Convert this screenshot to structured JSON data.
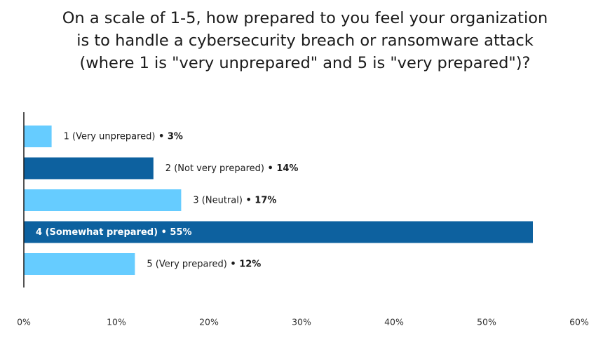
{
  "title_lines": [
    "On a scale of 1-5, how prepared to you feel your organization",
    "is to handle a cybersecurity breach or ransomware attack",
    "(where 1 is \"very unprepared\" and 5 is \"very prepared\")?"
  ],
  "colors": {
    "light_bar": "#66ccff",
    "dark_bar": "#0d619f",
    "axis": "#1a1a1a",
    "label_dark": "#1a1a1a",
    "label_on_bar": "#ffffff"
  },
  "chart_data": {
    "type": "bar",
    "orientation": "horizontal",
    "title": "On a scale of 1-5, how prepared to you feel your organization is to handle a cybersecurity breach or ransomware attack (where 1 is \"very unprepared\" and 5 is \"very prepared\")?",
    "categories": [
      "1 (Very unprepared)",
      "2 (Not very prepared)",
      "3 (Neutral)",
      "4 (Somewhat prepared)",
      "5 (Very prepared)"
    ],
    "values": [
      3,
      14,
      17,
      55,
      12
    ],
    "value_labels": [
      "3%",
      "14%",
      "17%",
      "55%",
      "12%"
    ],
    "bar_colors": [
      "light",
      "dark",
      "light",
      "dark",
      "light"
    ],
    "label_inside": [
      false,
      false,
      false,
      true,
      false
    ],
    "xlim": [
      0,
      60
    ],
    "xticks": [
      0,
      10,
      20,
      30,
      40,
      50,
      60
    ],
    "xtick_labels": [
      "0%",
      "10%",
      "20%",
      "30%",
      "40%",
      "50%",
      "60%"
    ],
    "xlabel": "",
    "ylabel": "",
    "grid": false,
    "legend": "none"
  }
}
